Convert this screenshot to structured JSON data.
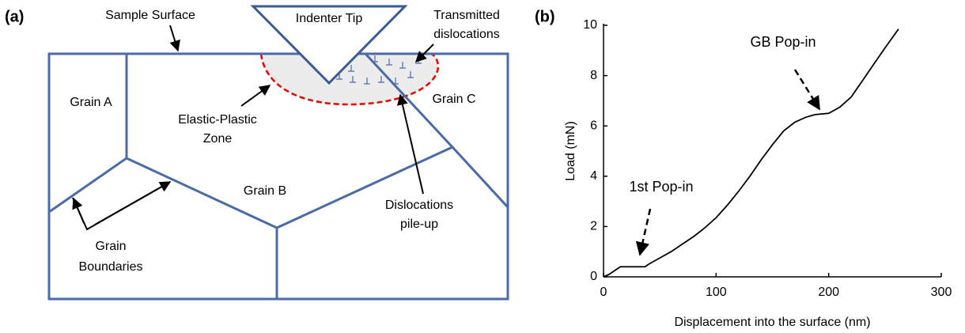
{
  "panel_a": {
    "label": "(a)",
    "sample_surface": "Sample Surface",
    "indenter_tip": "Indenter Tip",
    "transmitted": [
      "Transmitted",
      "dislocations"
    ],
    "grain_a": "Grain A",
    "grain_b": "Grain B",
    "grain_c": "Grain C",
    "elastic_plastic": [
      "Elastic-Plastic",
      "Zone"
    ],
    "pile_up": [
      "Dislocations",
      "pile-up"
    ],
    "boundaries": [
      "Grain",
      "Boundaries"
    ]
  },
  "chart_data": {
    "type": "line",
    "panel_label": "(b)",
    "xlabel": "Displacement into the surface (nm)",
    "ylabel": "Load (mN)",
    "x": [
      0,
      5,
      10,
      15,
      37,
      40,
      50,
      60,
      70,
      80,
      90,
      100,
      110,
      120,
      130,
      140,
      150,
      160,
      170,
      180,
      188,
      200,
      210,
      220,
      230,
      240,
      250,
      262
    ],
    "values": [
      0,
      0.1,
      0.25,
      0.4,
      0.4,
      0.5,
      0.75,
      1.0,
      1.3,
      1.6,
      1.95,
      2.35,
      2.85,
      3.4,
      4.0,
      4.65,
      5.25,
      5.8,
      6.15,
      6.35,
      6.45,
      6.5,
      6.75,
      7.15,
      7.8,
      8.45,
      9.1,
      9.85
    ],
    "color": "#000000",
    "xlim": [
      0,
      300
    ],
    "xticks": [
      0,
      100,
      200,
      300
    ],
    "ylim": [
      0,
      10
    ],
    "yticks": [
      0,
      2,
      4,
      6,
      8,
      10
    ],
    "annotations": [
      "1st Pop-in",
      "GB Pop-in"
    ]
  }
}
